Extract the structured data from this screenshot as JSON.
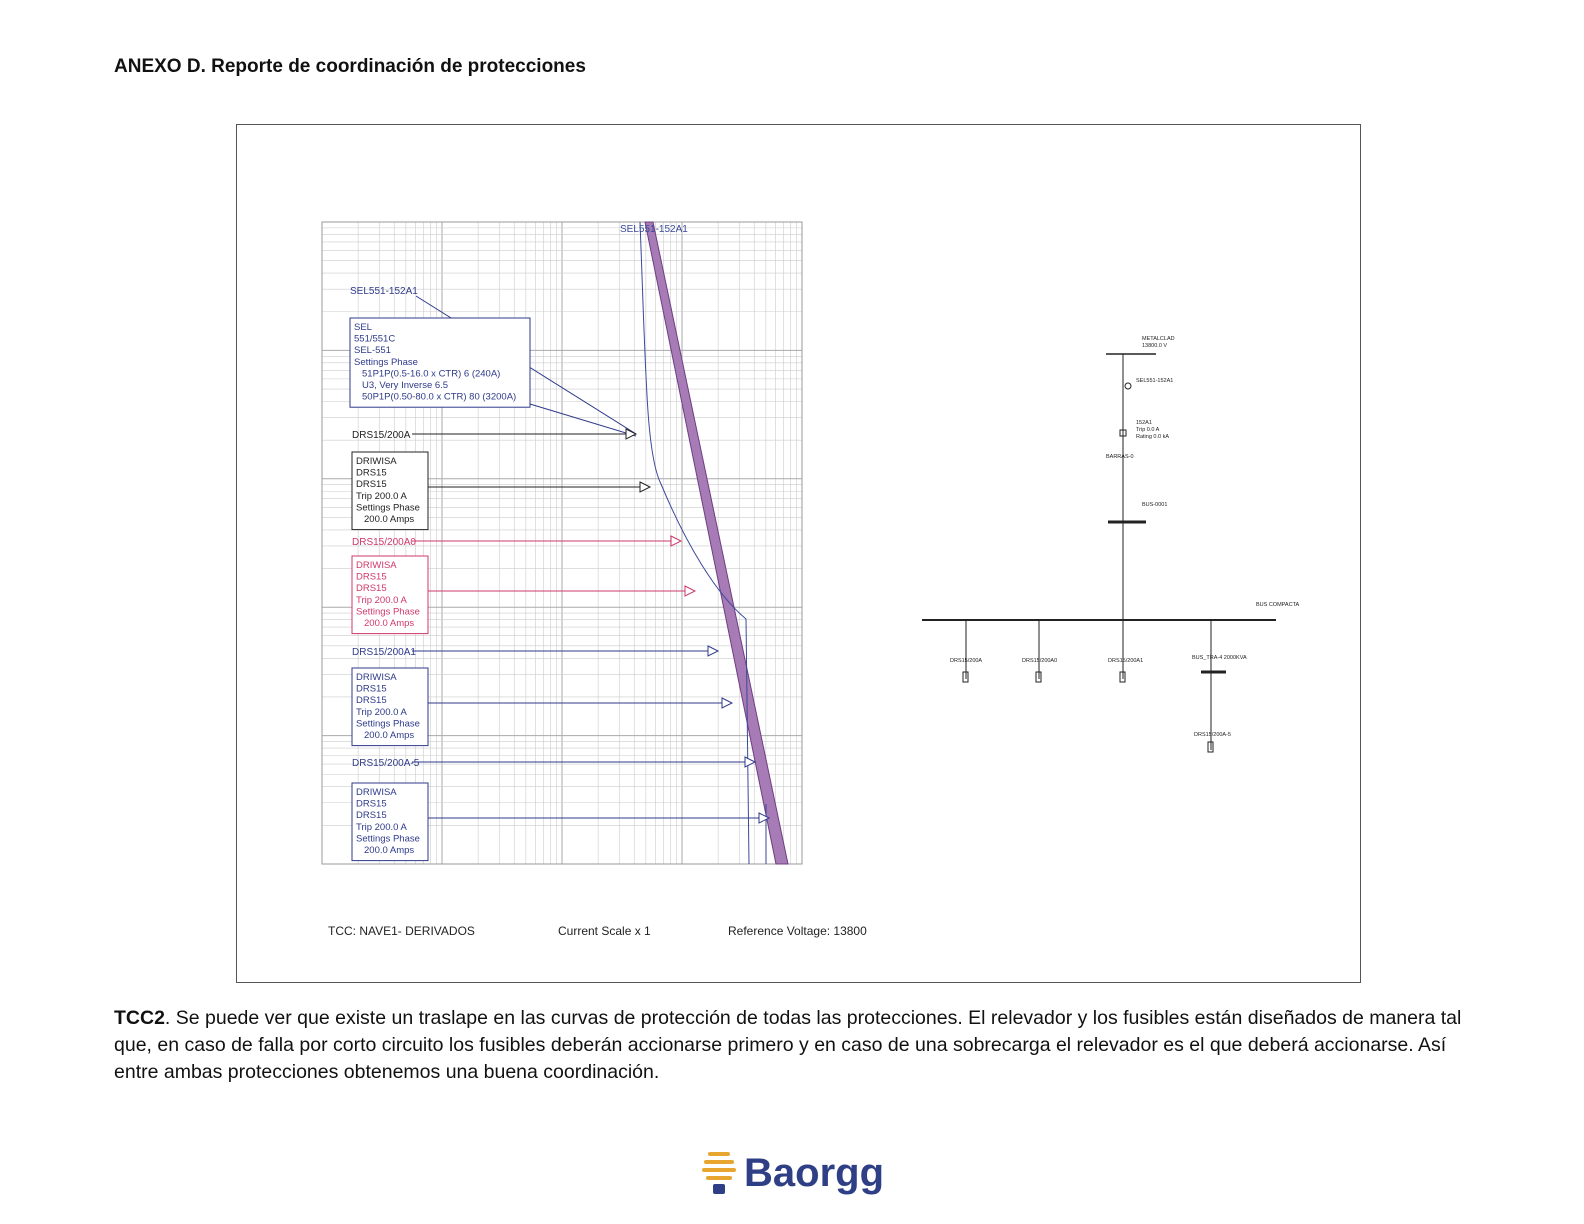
{
  "header": {
    "title": "ANEXO D. Reporte de coordinación de protecciones"
  },
  "tcc": {
    "curve_top_label": "SEL551-152A1",
    "relay_label": "SEL551-152A1",
    "relay_box": [
      "SEL",
      "551/551C",
      "SEL-551",
      "Settings Phase",
      "51P1P(0.5-16.0 x CTR) 6 (240A)",
      "U3, Very Inverse 6.5",
      "50P1P(0.50-80.0 x CTR) 80 (3200A)"
    ],
    "fuses": [
      {
        "label": "DRS15/200A",
        "box": [
          "DRIWISA",
          "DRS15",
          "DRS15",
          "Trip 200.0 A",
          "Settings Phase",
          "200.0 Amps"
        ]
      },
      {
        "label": "DRS15/200A0",
        "box": [
          "DRIWISA",
          "DRS15",
          "DRS15",
          "Trip 200.0 A",
          "Settings Phase",
          "200.0 Amps"
        ]
      },
      {
        "label": "DRS15/200A1",
        "box": [
          "DRIWISA",
          "DRS15",
          "DRS15",
          "Trip 200.0 A",
          "Settings Phase",
          "200.0 Amps"
        ]
      },
      {
        "label": "DRS15/200A-5",
        "box": [
          "DRIWISA",
          "DRS15",
          "DRS15",
          "Trip 200.0 A",
          "Settings Phase",
          "200.0 Amps"
        ]
      }
    ],
    "footer": {
      "tcc": "TCC:  NAVE1- DERIVADOS",
      "scale": "Current Scale  x 1",
      "voltage": "Reference Voltage: 13800"
    }
  },
  "one_line": {
    "labels": [
      "METALCLAD",
      "13800.0 V",
      "SEL551-152A1",
      "152A1",
      "Trip 0.0 A",
      "Rating 0.0 kA",
      "BARRAS-0",
      "BUS-0001",
      "BUS COMPACTA",
      "DRS15/200A",
      "DRS15/200A0",
      "DRS15/200A1",
      "BUS_TRA-4 2000KVA",
      "DRS15/200A-5"
    ]
  },
  "body": {
    "lead": "TCC2",
    "text": ". Se puede ver que existe un traslape en las curvas de protección de todas las protecciones. El relevador y los fusibles están diseñados de manera tal que, en caso de falla por corto circuito los fusibles deberán accionarse primero y en caso de una sobrecarga el relevador es el que deberá accionarse. Así entre ambas protecciones obtenemos una buena coordinación."
  },
  "logo": {
    "text": "Baorgg"
  }
}
